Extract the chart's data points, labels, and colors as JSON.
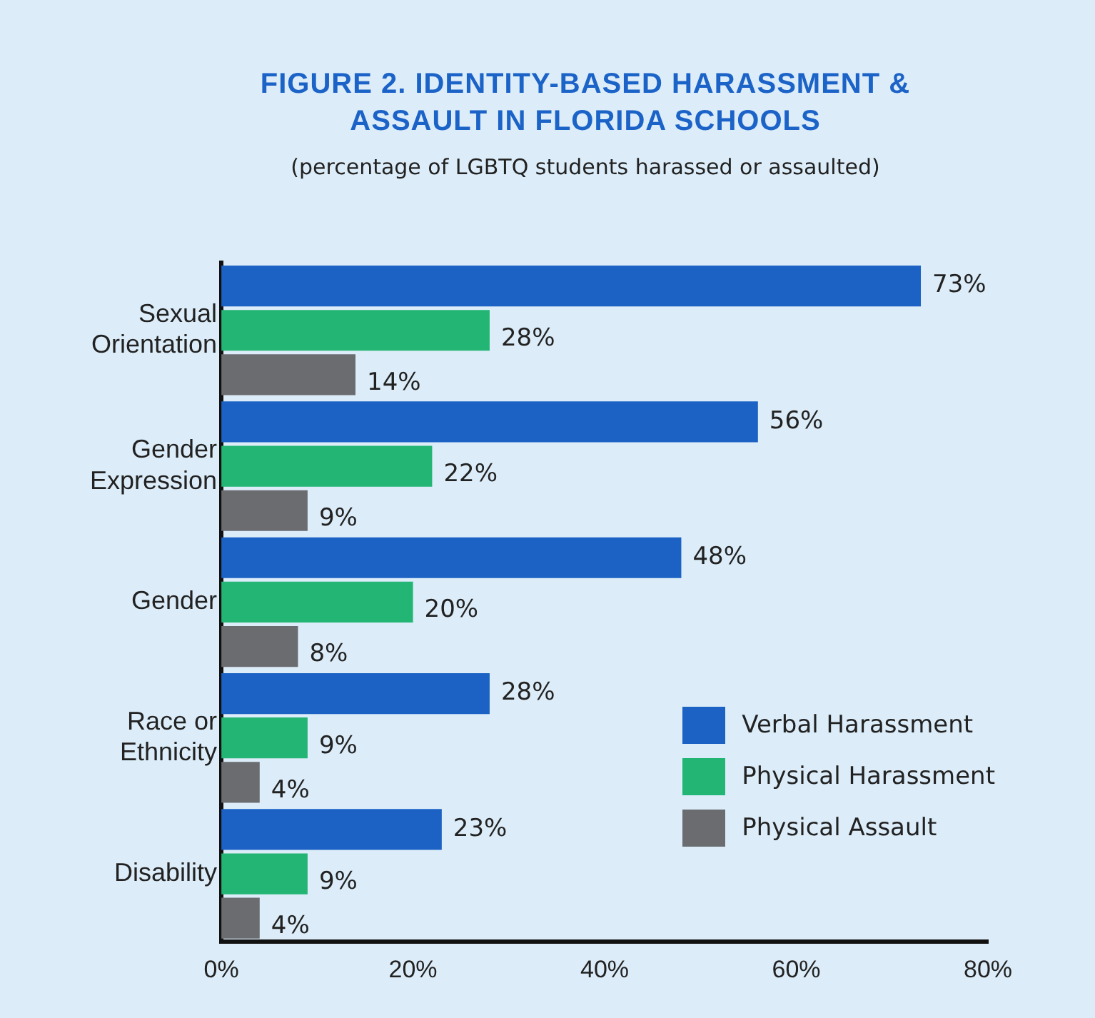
{
  "chart_data": {
    "type": "bar",
    "orientation": "horizontal",
    "title": "FIGURE 2. IDENTITY-BASED HARASSMENT & ASSAULT IN FLORIDA SCHOOLS",
    "subtitle": "(percentage of LGBTQ students harassed or assaulted)",
    "categories": [
      "Sexual Orientation",
      "Gender Expression",
      "Gender",
      "Race or Ethnicity",
      "Disability"
    ],
    "series": [
      {
        "name": "Verbal Harassment",
        "color": "#1b62c4",
        "values": [
          73,
          56,
          48,
          28,
          23
        ],
        "value_labels": [
          "73%",
          "56%",
          "48%",
          "28%",
          "23%"
        ]
      },
      {
        "name": "Physical Harassment",
        "color": "#22b573",
        "values": [
          28,
          22,
          20,
          9,
          9
        ],
        "value_labels": [
          "28%",
          "22%",
          "20%",
          "9%",
          "9%"
        ]
      },
      {
        "name": "Physical Assault",
        "color": "#6b6c70",
        "values": [
          14,
          9,
          8,
          4,
          4
        ],
        "value_labels": [
          "14%",
          "9%",
          "8%",
          "4%",
          "4%"
        ]
      }
    ],
    "xlim": [
      0,
      80
    ],
    "xticks": [
      {
        "value": 0,
        "label": "0%"
      },
      {
        "value": 20,
        "label": "20%"
      },
      {
        "value": 40,
        "label": "40%"
      },
      {
        "value": 60,
        "label": "60%"
      },
      {
        "value": 80,
        "label": "80%"
      }
    ],
    "grid": false,
    "legend": "bottom right"
  }
}
